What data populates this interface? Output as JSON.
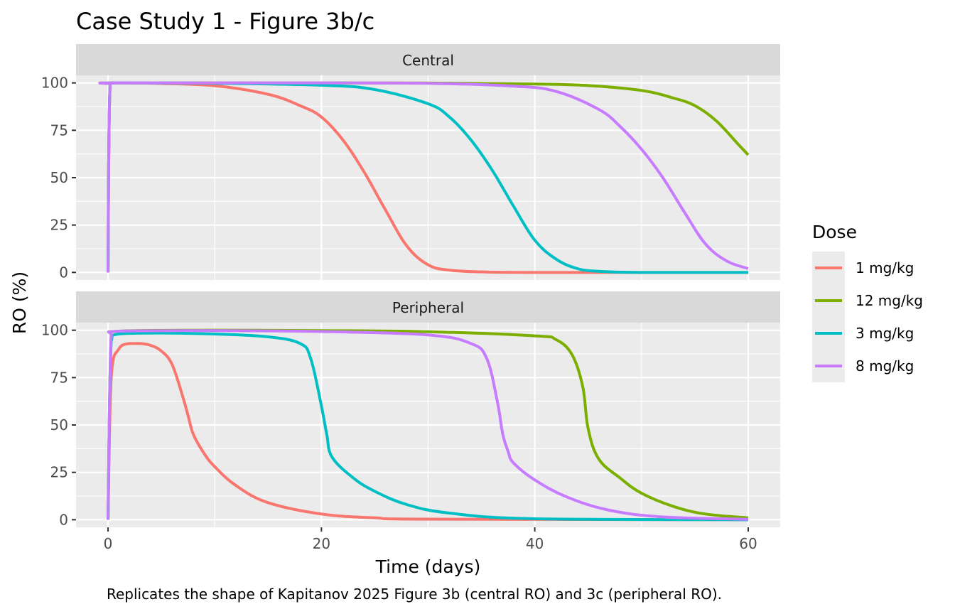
{
  "chart_data": {
    "type": "line",
    "title": "Case Study 1 - Figure 3b/c",
    "xlabel": "Time (days)",
    "ylabel": "RO (%)",
    "caption": "Replicates the shape of Kapitanov 2025 Figure 3b (central RO) and 3c (peripheral RO).",
    "xlim": [
      -3,
      63
    ],
    "ylim": [
      -4,
      104
    ],
    "x_ticks": [
      0,
      20,
      40,
      60
    ],
    "y_ticks": [
      0,
      25,
      50,
      75,
      100
    ],
    "grid": true,
    "legend": {
      "title": "Dose",
      "position": "right",
      "entries": [
        "1 mg/kg",
        "12 mg/kg",
        "3 mg/kg",
        "8 mg/kg"
      ]
    },
    "colors": {
      "1 mg/kg": "#F8766D",
      "12 mg/kg": "#7CAE00",
      "3 mg/kg": "#00BFC4",
      "8 mg/kg": "#C77CFF"
    },
    "panels": [
      {
        "label": "Central",
        "series": [
          {
            "name": "1 mg/kg",
            "x": [
              0,
              0.2,
              1,
              5,
              10,
              15,
              18,
              20,
              22,
              24,
              26,
              28,
              30,
              32,
              35,
              40,
              60
            ],
            "y": [
              0,
              99.5,
              100,
              99.7,
              98.5,
              94,
              88,
              82,
              70,
              53,
              33,
              14,
              4,
              1.2,
              0.3,
              0,
              0
            ]
          },
          {
            "name": "12 mg/kg",
            "x": [
              0,
              0.2,
              1,
              20,
              30,
              40,
              45,
              50,
              53,
              55,
              57,
              59,
              60
            ],
            "y": [
              0,
              99.5,
              100,
              100,
              99.9,
              99.4,
              98.6,
              96,
              92,
              88,
              80,
              68,
              62
            ]
          },
          {
            "name": "3 mg/kg",
            "x": [
              0,
              0.2,
              1,
              10,
              20,
              25,
              30,
              32,
              34,
              36,
              38,
              40,
              42,
              44,
              46,
              50,
              60
            ],
            "y": [
              0,
              99.5,
              100,
              99.8,
              98.8,
              96.5,
              89,
              82,
              70,
              54,
              35,
              17,
              7,
              2,
              0.6,
              0,
              0
            ]
          },
          {
            "name": "8 mg/kg",
            "x": [
              0,
              0.2,
              1,
              20,
              30,
              38,
              42,
              46,
              48,
              50,
              52,
              54,
              56,
              58,
              60
            ],
            "y": [
              0,
              99.5,
              100,
              100,
              99.8,
              98.3,
              95.5,
              86,
              77,
              65,
              50,
              32,
              15,
              6,
              2
            ]
          }
        ]
      },
      {
        "label": "Peripheral",
        "series": [
          {
            "name": "1 mg/kg",
            "x": [
              0,
              0.3,
              1,
              2,
              3,
              4,
              5,
              6,
              7,
              7.5,
              8,
              9,
              10,
              12,
              15,
              20,
              25,
              30,
              60
            ],
            "y": [
              0,
              75,
              90,
              93,
              93,
              92,
              89,
              82,
              65,
              55,
              45,
              35,
              28,
              18,
              9,
              3,
              1,
              0.3,
              0
            ]
          },
          {
            "name": "12 mg/kg",
            "x": [
              0,
              0.3,
              1,
              10,
              20,
              30,
              40,
              42,
              43.5,
              44.5,
              45,
              46,
              48,
              50,
              53,
              56,
              60
            ],
            "y": [
              0,
              97,
              99.5,
              100,
              99.8,
              99.2,
              97,
              95,
              87,
              70,
              48,
              32,
              22,
              14,
              7,
              3,
              1
            ]
          },
          {
            "name": "3 mg/kg",
            "x": [
              0,
              0.3,
              1,
              5,
              10,
              15,
              18,
              19,
              20,
              20.5,
              21,
              23,
              25,
              28,
              32,
              40,
              60
            ],
            "y": [
              0,
              94,
              98,
              98.5,
              98,
              96.5,
              93,
              85,
              60,
              45,
              33,
              22,
              15,
              8,
              3.5,
              0.5,
              0
            ]
          },
          {
            "name": "8 mg/kg",
            "x": [
              0,
              0.3,
              1,
              10,
              20,
              30,
              34,
              35.5,
              36.5,
              37,
              37.5,
              38,
              40,
              43,
              47,
              52,
              60
            ],
            "y": [
              0,
              97,
              99.5,
              99.8,
              99.3,
              97.5,
              93,
              85,
              62,
              45,
              36,
              30,
              21,
              12,
              5,
              1.5,
              0.2
            ]
          }
        ]
      }
    ]
  }
}
